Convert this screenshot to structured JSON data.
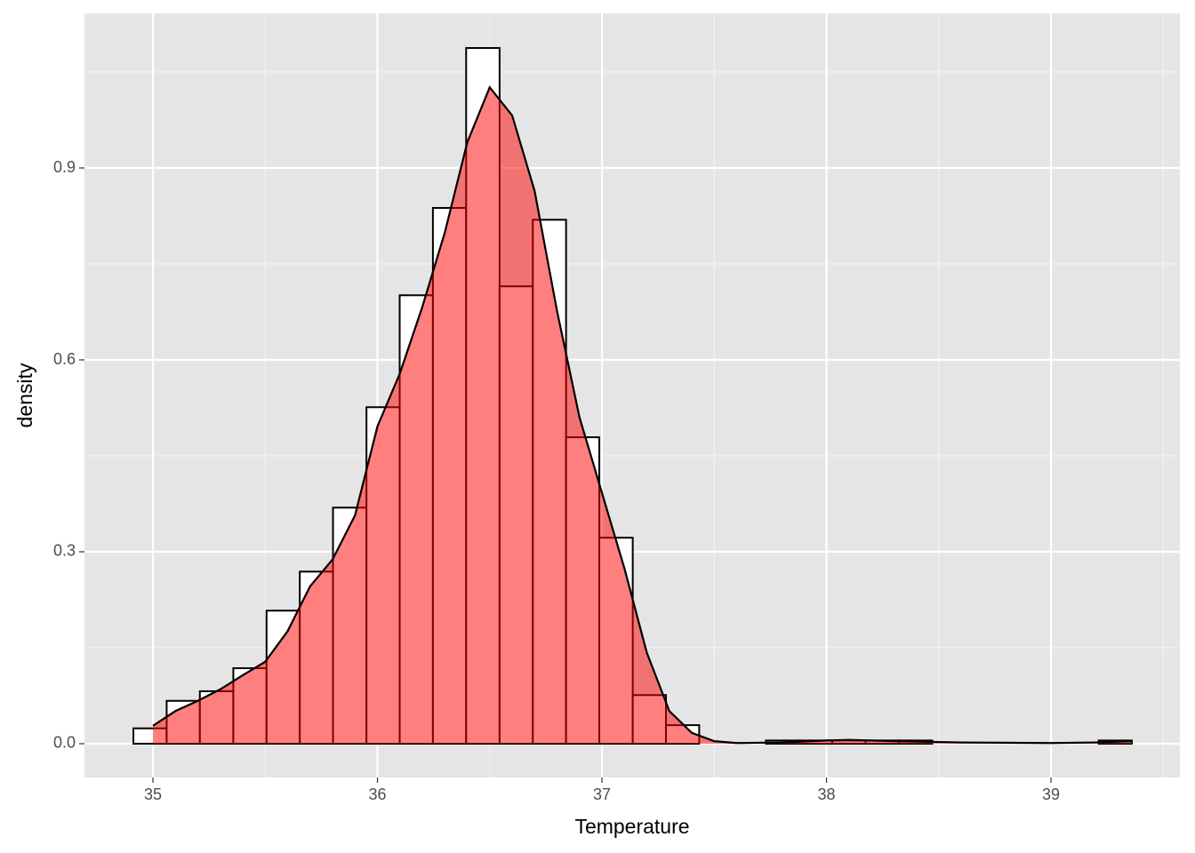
{
  "chart_data": {
    "type": "histogram",
    "x_label": "Temperature",
    "y_label": "density",
    "bins": [
      34.913,
      35.061,
      35.209,
      35.358,
      35.506,
      35.654,
      35.802,
      35.951,
      36.099,
      36.247,
      36.395,
      36.544,
      36.692,
      36.84,
      36.988,
      37.137,
      37.285,
      37.433,
      37.581,
      37.73,
      37.878,
      38.026,
      38.174,
      38.323,
      38.471,
      38.619,
      38.767,
      38.916,
      39.064,
      39.212,
      39.36
    ],
    "values": [
      0.024,
      0.067,
      0.082,
      0.118,
      0.208,
      0.269,
      0.369,
      0.526,
      0.701,
      0.8375,
      1.0875,
      0.715,
      0.819,
      0.479,
      0.322,
      0.076,
      0.029,
      0,
      0,
      0.005,
      0.005,
      0.005,
      0.005,
      0.005,
      0,
      0,
      0,
      0,
      0,
      0.005
    ],
    "color": "#ffffff",
    "edge_color": "#000000",
    "density": {
      "x": [
        35.0,
        35.1,
        35.2,
        35.3,
        35.4,
        35.5,
        35.6,
        35.7,
        35.8,
        35.9,
        36.0,
        36.1,
        36.2,
        36.3,
        36.4,
        36.5,
        36.6,
        36.7,
        36.8,
        36.9,
        37.0,
        37.1,
        37.2,
        37.3,
        37.4,
        37.5,
        37.6,
        37.8,
        38.0,
        38.1,
        38.3,
        38.6,
        39.0,
        39.2,
        39.36
      ],
      "values": [
        0.028,
        0.051,
        0.067,
        0.085,
        0.107,
        0.128,
        0.176,
        0.246,
        0.288,
        0.357,
        0.496,
        0.579,
        0.683,
        0.799,
        0.94,
        1.026,
        0.982,
        0.864,
        0.676,
        0.51,
        0.392,
        0.274,
        0.142,
        0.051,
        0.017,
        0.004,
        0.001,
        0.002,
        0.005,
        0.006,
        0.004,
        0.002,
        0.001,
        0.002,
        0.004
      ],
      "color": "#ff0000",
      "line_color": "#000000"
    },
    "xlim": [
      34.695,
      39.574
    ],
    "ylim": [
      -0.0528,
      1.1417
    ],
    "xticks": [
      35,
      36,
      37,
      38,
      39
    ],
    "yticks": [
      {
        "value": 0,
        "label": "0.0"
      },
      0.3,
      0.6,
      0.9
    ],
    "grid": true
  }
}
